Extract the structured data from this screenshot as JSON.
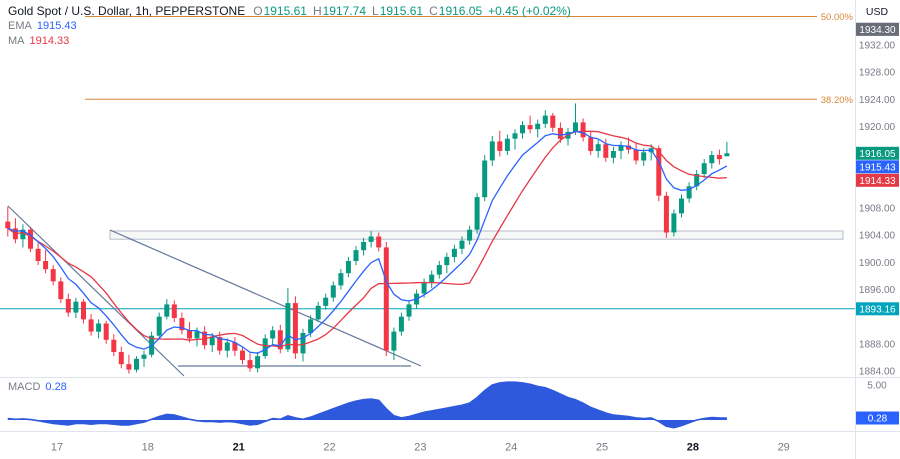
{
  "header": {
    "symbol": "Gold Spot / U.S. Dollar, 1h, PEPPERSTONE",
    "ohlc": {
      "o_label": "O",
      "o_value": "1915.61",
      "h_label": "H",
      "h_value": "1917.74",
      "l_label": "L",
      "l_value": "1915.61",
      "c_label": "C",
      "c_value": "1916.05",
      "change": "+0.45 (+0.02%)"
    }
  },
  "indicators": {
    "ema": {
      "label": "EMA",
      "value": "1915.43"
    },
    "ma": {
      "label": "MA",
      "value": "1914.33"
    },
    "macd": {
      "label": "MACD",
      "value": "0.28"
    }
  },
  "price_axis": {
    "currency": "USD",
    "ticks": [
      {
        "text": "1932.00",
        "price": 1932
      },
      {
        "text": "1928.00",
        "price": 1928
      },
      {
        "text": "1924.00",
        "price": 1924
      },
      {
        "text": "1920.00",
        "price": 1920
      },
      {
        "text": "1908.00",
        "price": 1908
      },
      {
        "text": "1904.00",
        "price": 1904
      },
      {
        "text": "1900.00",
        "price": 1900
      },
      {
        "text": "1896.00",
        "price": 1896
      },
      {
        "text": "1888.00",
        "price": 1888
      },
      {
        "text": "1884.00",
        "price": 1884
      }
    ],
    "macd_ticks": [
      {
        "text": "5.00",
        "value": 5
      }
    ],
    "badges": [
      {
        "text": "1934.30",
        "price": 1934.3,
        "color": "badge_gray"
      },
      {
        "text": "1916.05",
        "price": 1916.05,
        "color": "up"
      },
      {
        "text": "1915.43",
        "price": 1915.43,
        "color": "ema"
      },
      {
        "text": "1914.33",
        "price": 1914.33,
        "color": "ma"
      },
      {
        "text": "1893.16",
        "price": 1893.16,
        "color": "teal"
      }
    ],
    "macd_badge": {
      "text": "0.28",
      "value": 0.28,
      "color": "macd_badge"
    }
  },
  "time_axis": {
    "labels": [
      {
        "text": "17",
        "idx": 7,
        "bold": false
      },
      {
        "text": "18",
        "idx": 19,
        "bold": false
      },
      {
        "text": "21",
        "idx": 31,
        "bold": true
      },
      {
        "text": "22",
        "idx": 43,
        "bold": false
      },
      {
        "text": "23",
        "idx": 55,
        "bold": false
      },
      {
        "text": "24",
        "idx": 67,
        "bold": false
      },
      {
        "text": "25",
        "idx": 79,
        "bold": false
      },
      {
        "text": "28",
        "idx": 91,
        "bold": true
      },
      {
        "text": "29",
        "idx": 103,
        "bold": false
      }
    ]
  },
  "colors": {
    "up": "#089981",
    "down": "#f23645",
    "ema": "#2962ff",
    "ma": "#e53945",
    "macd_fill": "#2f59dd",
    "macd_badge": "#2962ff",
    "fib": "#d9873a",
    "teal": "#00a5bd",
    "trend": "#64789b",
    "box": "#b6bcca",
    "axis_text": "#787b86",
    "dark": "#131722",
    "sep": "#e0e3eb",
    "badge_gray": "#6a6d78",
    "bg": "#ffffff"
  },
  "chart_data": {
    "type": "candlestick",
    "title": "Gold Spot / U.S. Dollar, 1h, PEPPERSTONE",
    "ylabel": "USD",
    "ylim": [
      1883,
      1939
    ],
    "candles": [
      [
        1906.0,
        1908.2,
        1903.8,
        1905.0
      ],
      [
        1905.0,
        1906.5,
        1902.8,
        1903.4
      ],
      [
        1903.4,
        1905.6,
        1902.2,
        1904.8
      ],
      [
        1904.8,
        1905.2,
        1901.5,
        1902.0
      ],
      [
        1902.0,
        1903.0,
        1899.6,
        1900.2
      ],
      [
        1900.2,
        1901.8,
        1898.4,
        1899.0
      ],
      [
        1899.0,
        1899.6,
        1896.6,
        1897.2
      ],
      [
        1897.2,
        1897.8,
        1894.0,
        1894.6
      ],
      [
        1894.6,
        1895.4,
        1892.0,
        1892.6
      ],
      [
        1892.6,
        1894.8,
        1891.8,
        1894.2
      ],
      [
        1894.2,
        1894.6,
        1891.0,
        1891.6
      ],
      [
        1891.6,
        1892.4,
        1889.2,
        1889.8
      ],
      [
        1889.8,
        1891.6,
        1888.8,
        1891.0
      ],
      [
        1891.0,
        1891.4,
        1888.0,
        1888.6
      ],
      [
        1888.6,
        1889.4,
        1886.2,
        1886.8
      ],
      [
        1886.8,
        1887.6,
        1884.4,
        1885.0
      ],
      [
        1885.0,
        1886.4,
        1883.6,
        1884.2
      ],
      [
        1884.2,
        1886.2,
        1883.8,
        1885.8
      ],
      [
        1885.8,
        1887.0,
        1884.6,
        1886.4
      ],
      [
        1886.4,
        1889.8,
        1886.0,
        1889.2
      ],
      [
        1889.2,
        1892.6,
        1888.8,
        1892.0
      ],
      [
        1892.0,
        1894.6,
        1891.6,
        1893.8
      ],
      [
        1893.8,
        1894.4,
        1891.2,
        1891.8
      ],
      [
        1891.8,
        1892.6,
        1889.4,
        1890.0
      ],
      [
        1890.0,
        1891.2,
        1888.2,
        1888.8
      ],
      [
        1888.8,
        1890.4,
        1887.6,
        1889.8
      ],
      [
        1889.8,
        1890.6,
        1887.2,
        1887.8
      ],
      [
        1887.8,
        1889.6,
        1886.8,
        1889.0
      ],
      [
        1889.0,
        1889.8,
        1886.4,
        1887.0
      ],
      [
        1887.0,
        1888.8,
        1886.0,
        1888.2
      ],
      [
        1888.2,
        1889.0,
        1886.2,
        1887.0
      ],
      [
        1887.0,
        1887.6,
        1885.0,
        1885.6
      ],
      [
        1885.6,
        1886.6,
        1883.9,
        1884.4
      ],
      [
        1884.4,
        1886.8,
        1883.8,
        1886.2
      ],
      [
        1886.2,
        1889.4,
        1885.8,
        1888.8
      ],
      [
        1888.8,
        1890.6,
        1887.8,
        1890.0
      ],
      [
        1890.0,
        1890.8,
        1886.6,
        1887.2
      ],
      [
        1887.2,
        1896.2,
        1886.8,
        1894.0
      ],
      [
        1894.0,
        1895.0,
        1885.8,
        1886.6
      ],
      [
        1886.6,
        1890.2,
        1885.4,
        1889.6
      ],
      [
        1889.6,
        1892.2,
        1889.0,
        1891.6
      ],
      [
        1891.6,
        1894.2,
        1891.2,
        1893.6
      ],
      [
        1893.6,
        1895.4,
        1893.0,
        1894.8
      ],
      [
        1894.8,
        1897.2,
        1894.2,
        1896.6
      ],
      [
        1896.6,
        1899.0,
        1896.0,
        1898.4
      ],
      [
        1898.4,
        1900.8,
        1897.8,
        1900.2
      ],
      [
        1900.2,
        1902.4,
        1899.6,
        1901.8
      ],
      [
        1901.8,
        1903.6,
        1901.0,
        1903.0
      ],
      [
        1903.0,
        1904.6,
        1902.2,
        1903.8
      ],
      [
        1903.8,
        1904.4,
        1901.6,
        1902.2
      ],
      [
        1902.2,
        1903.0,
        1886.2,
        1887.0
      ],
      [
        1887.0,
        1890.4,
        1885.6,
        1889.8
      ],
      [
        1889.8,
        1892.6,
        1889.2,
        1892.0
      ],
      [
        1892.0,
        1894.4,
        1891.4,
        1893.8
      ],
      [
        1893.8,
        1896.0,
        1893.2,
        1895.4
      ],
      [
        1895.4,
        1897.6,
        1894.8,
        1897.0
      ],
      [
        1897.0,
        1898.8,
        1896.2,
        1898.2
      ],
      [
        1898.2,
        1900.2,
        1897.6,
        1899.6
      ],
      [
        1899.6,
        1901.4,
        1898.4,
        1900.8
      ],
      [
        1900.8,
        1902.6,
        1900.0,
        1902.0
      ],
      [
        1902.0,
        1903.8,
        1901.2,
        1903.2
      ],
      [
        1903.2,
        1905.4,
        1902.6,
        1904.8
      ],
      [
        1904.8,
        1910.2,
        1904.2,
        1909.6
      ],
      [
        1909.6,
        1915.8,
        1909.0,
        1915.0
      ],
      [
        1915.0,
        1918.6,
        1914.2,
        1917.8
      ],
      [
        1917.8,
        1919.4,
        1915.6,
        1916.4
      ],
      [
        1916.4,
        1918.8,
        1915.8,
        1918.2
      ],
      [
        1918.2,
        1919.6,
        1916.6,
        1919.0
      ],
      [
        1919.0,
        1920.8,
        1918.2,
        1920.2
      ],
      [
        1920.2,
        1921.6,
        1919.0,
        1919.6
      ],
      [
        1919.6,
        1921.0,
        1918.4,
        1920.4
      ],
      [
        1920.4,
        1922.4,
        1919.8,
        1921.6
      ],
      [
        1921.6,
        1922.0,
        1919.2,
        1919.8
      ],
      [
        1919.8,
        1920.6,
        1917.6,
        1918.2
      ],
      [
        1918.2,
        1919.8,
        1917.2,
        1919.2
      ],
      [
        1919.2,
        1923.4,
        1918.8,
        1920.6
      ],
      [
        1920.6,
        1921.2,
        1917.8,
        1918.4
      ],
      [
        1918.4,
        1919.2,
        1915.8,
        1916.4
      ],
      [
        1916.4,
        1918.0,
        1915.4,
        1917.4
      ],
      [
        1917.4,
        1918.2,
        1914.8,
        1915.4
      ],
      [
        1915.4,
        1917.0,
        1914.6,
        1916.4
      ],
      [
        1916.4,
        1917.8,
        1915.2,
        1917.2
      ],
      [
        1917.2,
        1918.4,
        1916.0,
        1916.6
      ],
      [
        1916.6,
        1917.6,
        1914.4,
        1915.0
      ],
      [
        1915.0,
        1916.8,
        1914.2,
        1916.2
      ],
      [
        1916.2,
        1917.4,
        1915.0,
        1916.8
      ],
      [
        1916.8,
        1917.2,
        1909.0,
        1909.8
      ],
      [
        1909.8,
        1910.4,
        1903.6,
        1904.4
      ],
      [
        1904.4,
        1907.8,
        1903.8,
        1907.2
      ],
      [
        1907.2,
        1910.0,
        1906.6,
        1909.4
      ],
      [
        1909.4,
        1911.8,
        1908.8,
        1911.2
      ],
      [
        1911.2,
        1913.6,
        1910.6,
        1913.0
      ],
      [
        1913.0,
        1915.2,
        1912.4,
        1914.6
      ],
      [
        1914.6,
        1916.4,
        1913.8,
        1915.8
      ],
      [
        1915.8,
        1916.6,
        1914.4,
        1915.2
      ],
      [
        1915.61,
        1917.74,
        1915.61,
        1916.05
      ]
    ],
    "macd": [
      0.2,
      0.1,
      0.15,
      0.05,
      -0.1,
      -0.3,
      -0.5,
      -0.6,
      -0.7,
      -0.5,
      -0.5,
      -0.6,
      -0.5,
      -0.5,
      -0.6,
      -0.7,
      -0.7,
      -0.5,
      -0.3,
      0.1,
      0.5,
      0.8,
      0.7,
      0.4,
      0.1,
      -0.1,
      -0.2,
      -0.2,
      -0.3,
      -0.2,
      -0.3,
      -0.5,
      -0.7,
      -0.6,
      -0.2,
      0.2,
      0.1,
      0.6,
      0.3,
      0.1,
      0.4,
      0.8,
      1.2,
      1.6,
      2.0,
      2.4,
      2.7,
      2.9,
      3.0,
      2.8,
      1.6,
      0.6,
      0.3,
      0.5,
      0.8,
      1.1,
      1.3,
      1.5,
      1.7,
      1.9,
      2.1,
      2.4,
      3.2,
      4.2,
      5.0,
      5.3,
      5.4,
      5.4,
      5.3,
      5.1,
      4.8,
      4.6,
      4.2,
      3.7,
      3.2,
      2.9,
      2.4,
      1.8,
      1.4,
      1.0,
      0.7,
      0.6,
      0.5,
      0.3,
      0.2,
      0.3,
      -0.2,
      -0.9,
      -1.1,
      -0.8,
      -0.4,
      0.0,
      0.2,
      0.35,
      0.3,
      0.28
    ],
    "annotations": [
      {
        "type": "fib",
        "label": "50.00%",
        "price": 1936.2
      },
      {
        "type": "fib",
        "label": "38.20%",
        "price": 1924.0
      },
      {
        "type": "hline",
        "price": 1893.16
      },
      {
        "type": "box",
        "x1": 110,
        "x2": 843,
        "p1": 1904.62,
        "p2": 1903.42
      },
      {
        "type": "trendline",
        "x1": 8,
        "y1": 206,
        "x2": 184,
        "y2": 376
      },
      {
        "type": "trendline",
        "x1": 110,
        "y1": 230,
        "x2": 421,
        "y2": 366
      },
      {
        "type": "trendline",
        "x1": 178,
        "y1": 366,
        "x2": 411,
        "y2": 366
      }
    ]
  }
}
